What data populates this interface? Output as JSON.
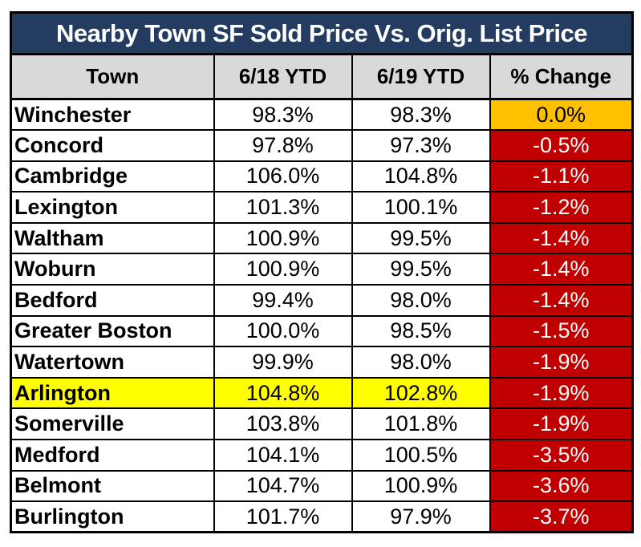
{
  "chart_data": {
    "type": "table",
    "title": "Nearby Town SF Sold Price Vs. Orig. List Price",
    "columns": [
      "Town",
      "6/18 YTD",
      "6/19 YTD",
      "% Change"
    ],
    "rows": [
      {
        "town": "Winchester",
        "ytd_2018": "98.3%",
        "ytd_2019": "98.3%",
        "change": "0.0%",
        "change_style": "flat",
        "highlight": false
      },
      {
        "town": "Concord",
        "ytd_2018": "97.8%",
        "ytd_2019": "97.3%",
        "change": "-0.5%",
        "change_style": "down",
        "highlight": false
      },
      {
        "town": "Cambridge",
        "ytd_2018": "106.0%",
        "ytd_2019": "104.8%",
        "change": "-1.1%",
        "change_style": "down",
        "highlight": false
      },
      {
        "town": "Lexington",
        "ytd_2018": "101.3%",
        "ytd_2019": "100.1%",
        "change": "-1.2%",
        "change_style": "down",
        "highlight": false
      },
      {
        "town": "Waltham",
        "ytd_2018": "100.9%",
        "ytd_2019": "99.5%",
        "change": "-1.4%",
        "change_style": "down",
        "highlight": false
      },
      {
        "town": "Woburn",
        "ytd_2018": "100.9%",
        "ytd_2019": "99.5%",
        "change": "-1.4%",
        "change_style": "down",
        "highlight": false
      },
      {
        "town": "Bedford",
        "ytd_2018": "99.4%",
        "ytd_2019": "98.0%",
        "change": "-1.4%",
        "change_style": "down",
        "highlight": false
      },
      {
        "town": "Greater Boston",
        "ytd_2018": "100.0%",
        "ytd_2019": "98.5%",
        "change": "-1.5%",
        "change_style": "down",
        "highlight": false
      },
      {
        "town": "Watertown",
        "ytd_2018": "99.9%",
        "ytd_2019": "98.0%",
        "change": "-1.9%",
        "change_style": "down",
        "highlight": false
      },
      {
        "town": "Arlington",
        "ytd_2018": "104.8%",
        "ytd_2019": "102.8%",
        "change": "-1.9%",
        "change_style": "down",
        "highlight": true
      },
      {
        "town": "Somerville",
        "ytd_2018": "103.8%",
        "ytd_2019": "101.8%",
        "change": "-1.9%",
        "change_style": "down",
        "highlight": false
      },
      {
        "town": "Medford",
        "ytd_2018": "104.1%",
        "ytd_2019": "100.5%",
        "change": "-3.5%",
        "change_style": "down",
        "highlight": false
      },
      {
        "town": "Belmont",
        "ytd_2018": "104.7%",
        "ytd_2019": "100.9%",
        "change": "-3.6%",
        "change_style": "down",
        "highlight": false
      },
      {
        "town": "Burlington",
        "ytd_2018": "101.7%",
        "ytd_2019": "97.9%",
        "change": "-3.7%",
        "change_style": "down",
        "highlight": false
      }
    ]
  },
  "colors": {
    "title_bg": "#243C60",
    "title_fg": "#FFFFFF",
    "header_bg": "#D9D9D9",
    "flat_bg": "#FFC000",
    "down_bg": "#C00000",
    "highlight_bg": "#FFFF00",
    "border": "#000000"
  }
}
